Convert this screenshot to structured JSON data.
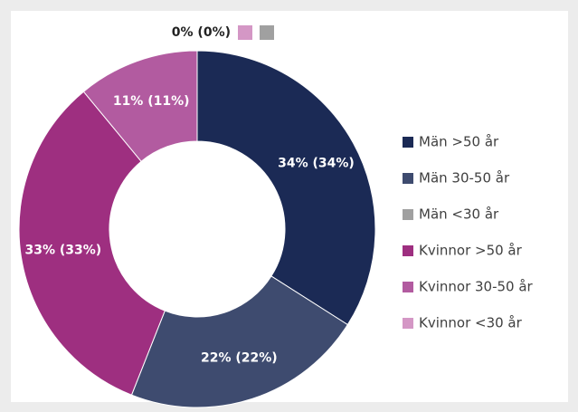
{
  "chart_data": {
    "type": "donut",
    "categories": [
      "Män >50 år",
      "Män 30-50 år",
      "Män <30 år",
      "Kvinnor >50 år",
      "Kvinnor 30-50 år",
      "Kvinnor <30 år"
    ],
    "values": [
      34,
      22,
      0,
      33,
      11,
      0
    ],
    "value_labels": [
      "34% (34%)",
      "22% (22%)",
      "0% (0%)",
      "33% (33%)",
      "11% (11%)",
      null
    ],
    "colors": [
      "#1b2a55",
      "#3e4b6f",
      "#a0a0a0",
      "#9e2f80",
      "#b25ba0",
      "#d497c5"
    ],
    "legend": "right"
  }
}
